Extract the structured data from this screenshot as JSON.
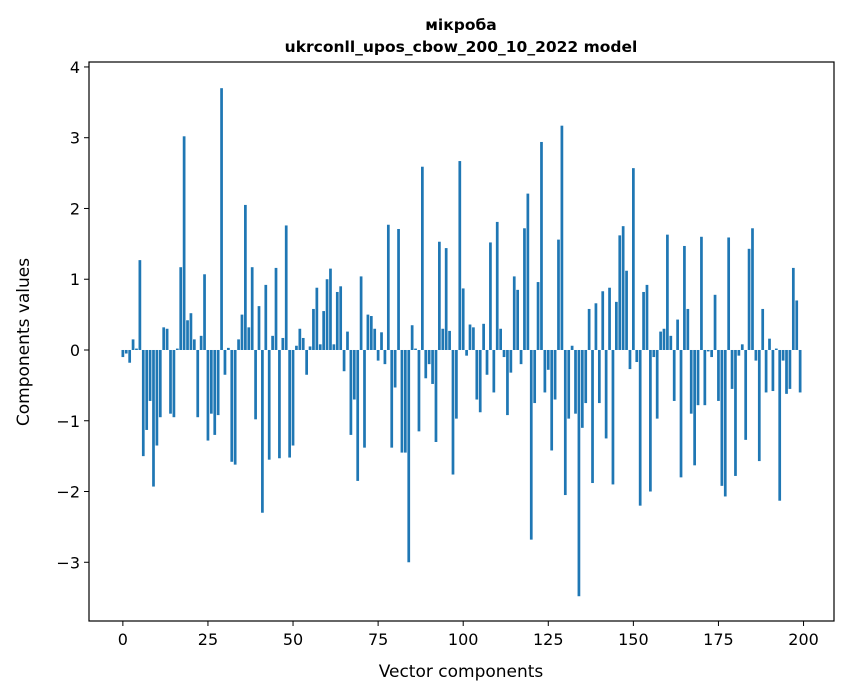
{
  "chart_data": {
    "type": "bar",
    "title": "мікроба",
    "subtitle": "ukrconll_upos_cbow_200_10_2022 model",
    "xlabel": "Vector components",
    "ylabel": "Components values",
    "xlim": [
      -9.95,
      208.95
    ],
    "ylim": [
      -3.83,
      4.07
    ],
    "xticks": [
      0,
      25,
      50,
      75,
      100,
      125,
      150,
      175,
      200
    ],
    "yticks": [
      -3,
      -2,
      -1,
      0,
      1,
      2,
      3,
      4
    ],
    "color": "#1f77b4",
    "grid": false,
    "legend": "none",
    "x_start": 0,
    "values": [
      -0.1,
      -0.05,
      -0.18,
      0.15,
      0.02,
      1.27,
      -1.5,
      -1.13,
      -0.72,
      -1.93,
      -1.35,
      -0.95,
      0.32,
      0.3,
      -0.9,
      -0.95,
      0.02,
      1.17,
      3.02,
      0.42,
      0.52,
      0.15,
      -0.95,
      0.2,
      1.07,
      -1.28,
      -0.9,
      -1.2,
      -0.92,
      3.7,
      -0.35,
      0.03,
      -1.58,
      -1.62,
      0.15,
      0.5,
      2.05,
      0.32,
      1.17,
      -0.98,
      0.62,
      -2.3,
      0.92,
      -1.55,
      0.2,
      1.16,
      -1.53,
      0.17,
      1.76,
      -1.52,
      -1.35,
      0.06,
      0.3,
      0.17,
      -0.35,
      0.05,
      0.58,
      0.88,
      0.08,
      0.55,
      1.0,
      1.15,
      0.08,
      0.82,
      0.9,
      -0.3,
      0.26,
      -1.2,
      -0.7,
      -1.85,
      1.04,
      -1.38,
      0.5,
      0.48,
      0.3,
      -0.15,
      0.25,
      -0.2,
      1.77,
      -1.38,
      -0.53,
      1.71,
      -1.45,
      -1.45,
      -3.0,
      0.35,
      0.02,
      -1.15,
      2.59,
      -0.4,
      -0.2,
      -0.48,
      -1.3,
      1.53,
      0.3,
      1.44,
      0.27,
      -1.76,
      -0.97,
      2.67,
      0.87,
      -0.08,
      0.36,
      0.32,
      -0.7,
      -0.88,
      0.37,
      -0.35,
      1.52,
      -0.6,
      1.81,
      0.3,
      -0.1,
      -0.92,
      -0.32,
      1.04,
      0.85,
      -0.2,
      1.72,
      2.21,
      -2.68,
      -0.75,
      0.96,
      2.94,
      -0.6,
      -0.28,
      -1.42,
      -0.7,
      1.56,
      3.17,
      -2.05,
      -0.97,
      0.06,
      -0.9,
      -3.48,
      -1.1,
      -0.75,
      0.58,
      -1.88,
      0.66,
      -0.75,
      0.83,
      -1.25,
      0.88,
      -1.9,
      0.68,
      1.62,
      1.75,
      1.12,
      -0.27,
      2.57,
      -0.17,
      -2.2,
      0.82,
      0.92,
      -2.0,
      -0.1,
      -0.97,
      0.26,
      0.3,
      1.63,
      0.2,
      -0.72,
      0.43,
      -1.8,
      1.47,
      0.58,
      -0.9,
      -1.63,
      -0.78,
      1.6,
      -0.78,
      -0.02,
      -0.1,
      0.78,
      -0.72,
      -1.92,
      -2.07,
      1.59,
      -0.55,
      -1.78,
      -0.08,
      0.08,
      -1.27,
      1.43,
      1.72,
      -0.15,
      -1.57,
      0.58,
      -0.6,
      0.16,
      -0.58,
      0.02,
      -2.13,
      -0.15,
      -0.62,
      -0.55,
      1.16,
      0.7,
      -0.6
    ]
  }
}
